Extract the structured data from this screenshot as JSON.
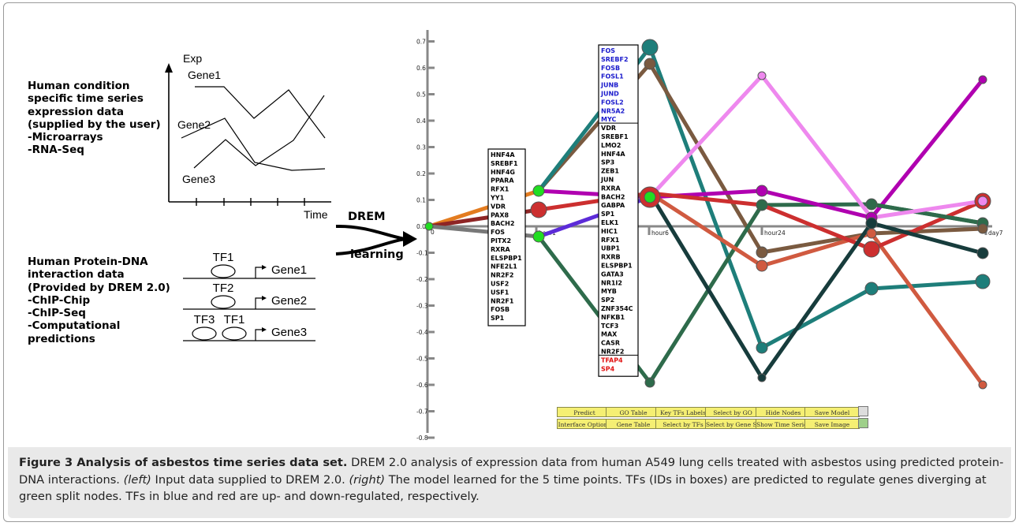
{
  "left_panel": {
    "expression_heading": [
      "Human condition",
      "specific time series",
      "expression data",
      "(supplied by the user)",
      "-Microarrays",
      "-RNA-Seq"
    ],
    "axis_y_label": "Exp",
    "axis_x_label": "Time",
    "gene_labels": [
      "Gene1",
      "Gene2",
      "Gene3"
    ],
    "interaction_heading": [
      "Human Protein-DNA",
      "interaction data",
      "(Provided by DREM 2.0)",
      "-ChIP-Chip",
      "-ChIP-Seq",
      "-Computational",
      " predictions"
    ],
    "tf_rows": [
      {
        "tfs": [
          "TF1"
        ],
        "gene": "Gene1"
      },
      {
        "tfs": [
          "TF2"
        ],
        "gene": "Gene2"
      },
      {
        "tfs": [
          "TF3",
          "TF1"
        ],
        "gene": "Gene3"
      }
    ]
  },
  "arrow": {
    "line1": "DREM",
    "line2": "learning"
  },
  "drem_plot": {
    "y_ticks": [
      "0.7",
      "0.6",
      "0.5",
      "0.4",
      "0.3",
      "0.2",
      "0.1",
      "0.0",
      "-0.1",
      "-0.2",
      "-0.3",
      "-0.4",
      "-0.5",
      "-0.6",
      "-0.7",
      "-0.8"
    ],
    "time_labels": [
      "0",
      "hour1",
      "hour6",
      "hour24",
      "day7"
    ],
    "tf_box1": [
      "HNF4A",
      "SREBF1",
      "HNF4G",
      "PPARA",
      "RFX1",
      "YY1",
      "VDR",
      "PAX8",
      "BACH2",
      "FOS",
      "PITX2",
      "RXRA",
      "ELSPBP1",
      "NFE2L1",
      "NR2F2",
      "USF2",
      "USF1",
      "NR2F1",
      "FOSB",
      "SP1"
    ],
    "tf_box2_up": [
      "FOS",
      "SREBF2",
      "FOSB",
      "FOSL1",
      "JUNB",
      "JUND",
      "FOSL2",
      "NR5A2",
      "MYC"
    ],
    "tf_box2_mid": [
      "VDR",
      "SREBF1",
      "LMO2",
      "HNF4A",
      "SP3",
      "ZEB1",
      "JUN",
      "RXRA",
      "BACH2",
      "GABPA",
      "SP1",
      "ELK1",
      "HIC1",
      "RFX1",
      "UBP1",
      "RXRB",
      "ELSPBP1",
      "GATA3",
      "NR1I2",
      "MYB",
      "SP2",
      "ZNF354C",
      "NFKB1",
      "TCF3",
      "MAX",
      "CASR",
      "NR2F2"
    ],
    "tf_box2_down": [
      "TFAP4",
      "SP4"
    ],
    "colors": {
      "up": "#1a1acc",
      "down": "#e01010",
      "split": "#22dd22",
      "button": "#f5ef73"
    }
  },
  "buttons": [
    "Predict",
    "GO Table",
    "Key TFs Labels",
    "Select by GO",
    "Hide Nodes",
    "Save Model",
    "Interface Options",
    "Gene Table",
    "Select by TFs",
    "Select by Gene Set",
    "Show Time Series",
    "Save Image"
  ],
  "caption": {
    "lead": "Figure 3 Analysis of asbestos time series data set.",
    "part1": " DREM 2.0 analysis of expression data from human A549 lung cells treated with asbestos using predicted protein-DNA interactions. ",
    "left_tag": "(left)",
    "part2": " Input data supplied to DREM 2.0. ",
    "right_tag": "(right)",
    "part3": " The model learned for the 5 time points. TFs (IDs in boxes) are predicted to regulate genes diverging at green split nodes. TFs in blue and red are up- and down-regulated, respectively."
  }
}
